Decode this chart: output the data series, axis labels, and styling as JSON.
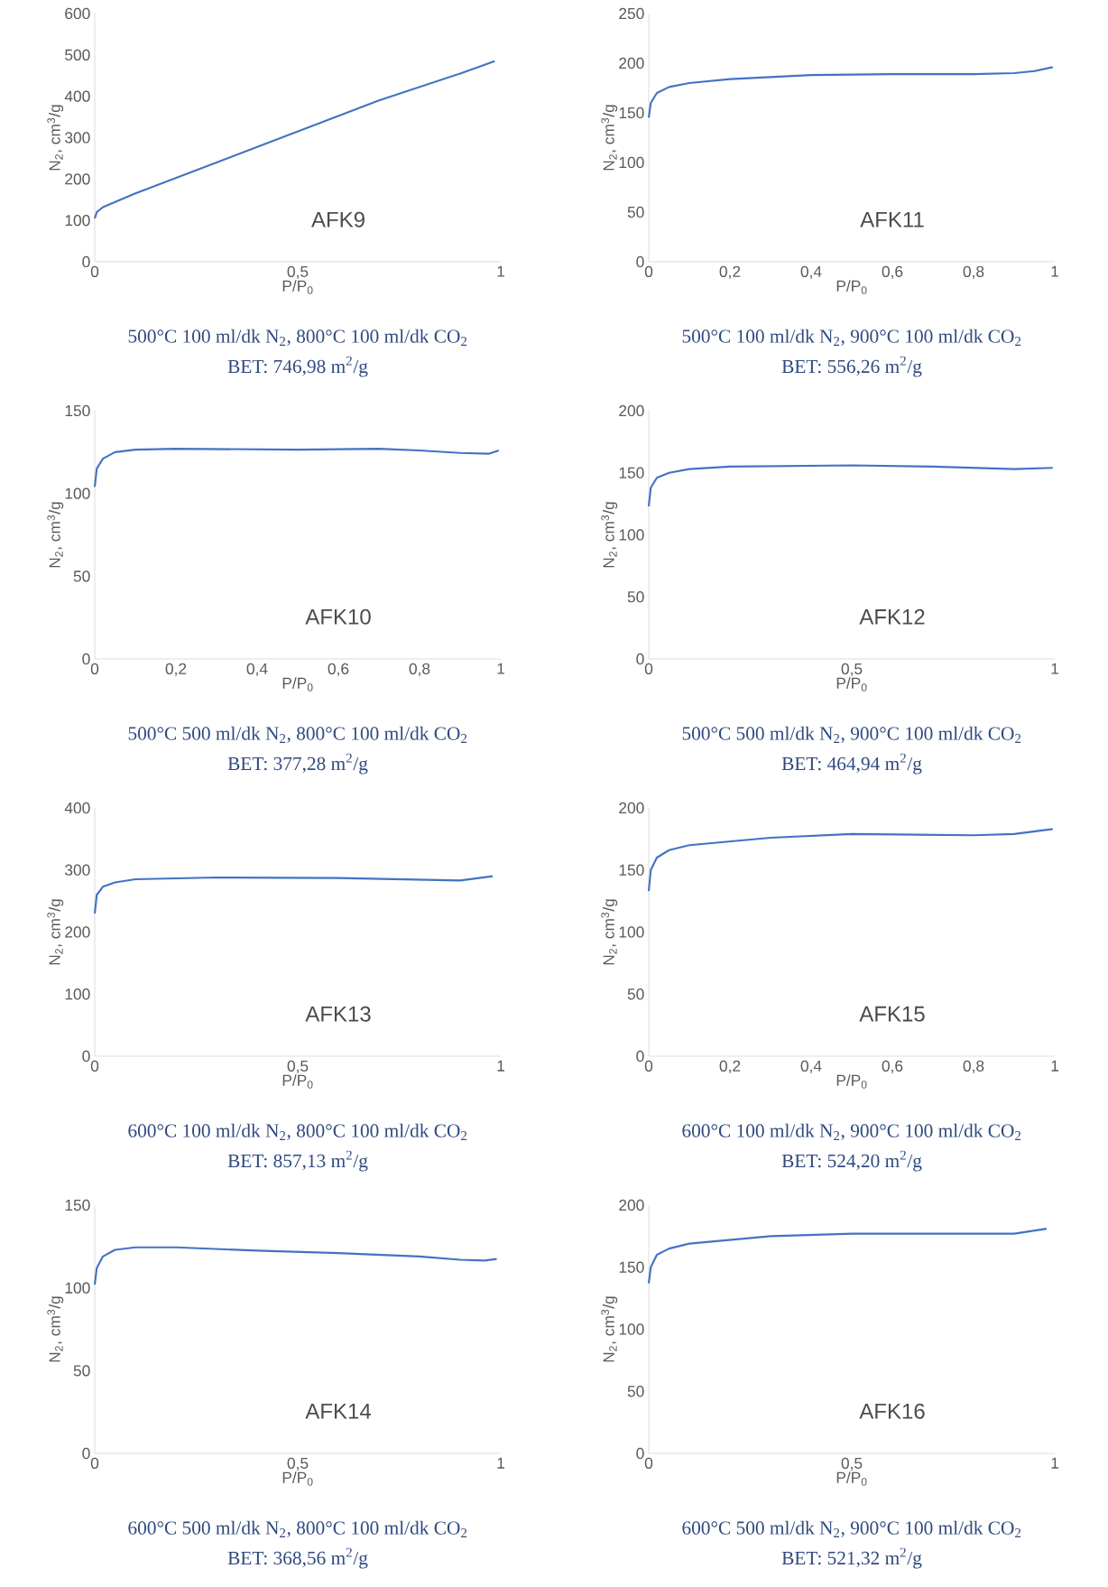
{
  "chart_data": [
    {
      "type": "line",
      "title": "AFK9",
      "xlabel": "P/P$_{0}$",
      "ylabel": "N$_{2}$, cm$^{3}$/g",
      "annotations": [
        "500°C 100 ml/dk N$_{2}$, 800°C 100 ml/dk CO$_{2}$",
        "BET: 746,98 m$^{2}$/g"
      ],
      "color": "#4472c4",
      "xlim": [
        0,
        1
      ],
      "ylim": [
        0,
        600
      ],
      "xticks": [
        0,
        {
          "value": 0.5,
          "label": "0,5"
        },
        1
      ],
      "yticks": [
        0,
        100,
        200,
        300,
        400,
        500,
        600
      ],
      "x": [
        0,
        0.005,
        0.02,
        0.1,
        0.3,
        0.5,
        0.7,
        0.9,
        0.985
      ],
      "values": [
        105,
        120,
        132,
        165,
        240,
        315,
        390,
        455,
        485
      ]
    },
    {
      "type": "line",
      "title": "AFK11",
      "xlabel": "P/P$_{0}$",
      "ylabel": "N$_{2}$, cm$^{3}$/g",
      "annotations": [
        "500°C 100 ml/dk N$_{2}$, 900°C 100 ml/dk CO$_{2}$",
        "BET: 556,26 m$^{2}$/g"
      ],
      "color": "#4472c4",
      "xlim": [
        0,
        1
      ],
      "ylim": [
        0,
        250
      ],
      "xticks": [
        0,
        {
          "value": 0.2,
          "label": "0,2"
        },
        {
          "value": 0.4,
          "label": "0,4"
        },
        {
          "value": 0.6,
          "label": "0,6"
        },
        {
          "value": 0.8,
          "label": "0,8"
        },
        1
      ],
      "yticks": [
        0,
        50,
        100,
        150,
        200,
        250
      ],
      "x": [
        0,
        0.005,
        0.02,
        0.05,
        0.1,
        0.2,
        0.4,
        0.6,
        0.8,
        0.9,
        0.95,
        0.995
      ],
      "values": [
        145,
        160,
        170,
        176,
        180,
        184,
        188,
        189,
        189,
        190,
        192,
        196
      ]
    },
    {
      "type": "line",
      "title": "AFK10",
      "xlabel": "P/P$_{0}$",
      "ylabel": "N$_{2}$, cm$^{3}$/g",
      "annotations": [
        "500°C 500 ml/dk N$_{2}$, 800°C 100 ml/dk CO$_{2}$",
        "BET: 377,28 m$^{2}$/g"
      ],
      "color": "#4472c4",
      "xlim": [
        0,
        1
      ],
      "ylim": [
        0,
        150
      ],
      "xticks": [
        0,
        {
          "value": 0.2,
          "label": "0,2"
        },
        {
          "value": 0.4,
          "label": "0,4"
        },
        {
          "value": 0.6,
          "label": "0,6"
        },
        {
          "value": 0.8,
          "label": "0,8"
        },
        1
      ],
      "yticks": [
        0,
        50,
        100,
        150
      ],
      "x": [
        0,
        0.005,
        0.02,
        0.05,
        0.1,
        0.2,
        0.5,
        0.7,
        0.8,
        0.9,
        0.97,
        0.995
      ],
      "values": [
        104,
        115,
        121,
        125,
        126.5,
        127,
        126.5,
        127,
        126,
        124.5,
        124,
        126
      ]
    },
    {
      "type": "line",
      "title": "AFK12",
      "xlabel": "P/P$_{0}$",
      "ylabel": "N$_{2}$, cm$^{3}$/g",
      "annotations": [
        "500°C 500 ml/dk N$_{2}$, 900°C 100 ml/dk CO$_{2}$",
        "BET: 464,94 m$^{2}$/g"
      ],
      "color": "#4472c4",
      "xlim": [
        0,
        1
      ],
      "ylim": [
        0,
        200
      ],
      "xticks": [
        0,
        {
          "value": 0.5,
          "label": "0,5"
        },
        1
      ],
      "yticks": [
        0,
        50,
        100,
        150,
        200
      ],
      "x": [
        0,
        0.005,
        0.02,
        0.05,
        0.1,
        0.2,
        0.5,
        0.7,
        0.9,
        0.995
      ],
      "values": [
        123,
        138,
        146,
        150,
        153,
        155,
        156,
        155,
        153,
        154
      ]
    },
    {
      "type": "line",
      "title": "AFK13",
      "xlabel": "P/P$_{0}$",
      "ylabel": "N$_{2}$, cm$^{3}$/g",
      "annotations": [
        "600°C 100 ml/dk N$_{2}$, 800°C 100 ml/dk CO$_{2}$",
        "BET: 857,13 m$^{2}$/g"
      ],
      "color": "#4472c4",
      "xlim": [
        0,
        1
      ],
      "ylim": [
        0,
        400
      ],
      "xticks": [
        0,
        {
          "value": 0.5,
          "label": "0,5"
        },
        1
      ],
      "yticks": [
        0,
        100,
        200,
        300,
        400
      ],
      "x": [
        0,
        0.005,
        0.02,
        0.05,
        0.1,
        0.3,
        0.6,
        0.9,
        0.98
      ],
      "values": [
        230,
        260,
        273,
        280,
        285,
        288,
        287,
        283,
        290
      ]
    },
    {
      "type": "line",
      "title": "AFK15",
      "xlabel": "P/P$_{0}$",
      "ylabel": "N$_{2}$, cm$^{3}$/g",
      "annotations": [
        "600°C 100 ml/dk N$_{2}$, 900°C 100 ml/dk CO$_{2}$",
        "BET: 524,20 m$^{2}$/g"
      ],
      "color": "#4472c4",
      "xlim": [
        0,
        1
      ],
      "ylim": [
        0,
        200
      ],
      "xticks": [
        0,
        {
          "value": 0.2,
          "label": "0,2"
        },
        {
          "value": 0.4,
          "label": "0,4"
        },
        {
          "value": 0.6,
          "label": "0,6"
        },
        {
          "value": 0.8,
          "label": "0,8"
        },
        1
      ],
      "yticks": [
        0,
        50,
        100,
        150,
        200
      ],
      "x": [
        0,
        0.005,
        0.02,
        0.05,
        0.1,
        0.3,
        0.5,
        0.8,
        0.9,
        0.995
      ],
      "values": [
        133,
        150,
        160,
        166,
        170,
        176,
        179,
        178,
        179,
        183
      ]
    },
    {
      "type": "line",
      "title": "AFK14",
      "xlabel": "P/P$_{0}$",
      "ylabel": "N$_{2}$, cm$^{3}$/g",
      "annotations": [
        "600°C 500 ml/dk N$_{2}$, 800°C 100 ml/dk CO$_{2}$",
        "BET: 368,56 m$^{2}$/g"
      ],
      "color": "#4472c4",
      "xlim": [
        0,
        1
      ],
      "ylim": [
        0,
        150
      ],
      "xticks": [
        0,
        {
          "value": 0.5,
          "label": "0,5"
        },
        1
      ],
      "yticks": [
        0,
        50,
        100,
        150
      ],
      "x": [
        0,
        0.005,
        0.02,
        0.05,
        0.1,
        0.2,
        0.4,
        0.6,
        0.8,
        0.9,
        0.96,
        0.99
      ],
      "values": [
        102,
        112,
        119,
        123,
        124.5,
        124.5,
        122.5,
        121,
        119,
        117,
        116.5,
        117.5
      ]
    },
    {
      "type": "line",
      "title": "AFK16",
      "xlabel": "P/P$_{0}$",
      "ylabel": "N$_{2}$, cm$^{3}$/g",
      "annotations": [
        "600°C 500 ml/dk N$_{2}$, 900°C 100 ml/dk CO$_{2}$",
        "BET: 521,32 m$^{2}$/g"
      ],
      "color": "#4472c4",
      "xlim": [
        0,
        1
      ],
      "ylim": [
        0,
        200
      ],
      "xticks": [
        0,
        {
          "value": 0.5,
          "label": "0,5"
        },
        1
      ],
      "yticks": [
        0,
        50,
        100,
        150,
        200
      ],
      "x": [
        0,
        0.005,
        0.02,
        0.05,
        0.1,
        0.3,
        0.5,
        0.7,
        0.9,
        0.98
      ],
      "values": [
        137,
        150,
        160,
        165,
        169,
        175,
        177,
        177,
        177,
        181
      ]
    }
  ]
}
